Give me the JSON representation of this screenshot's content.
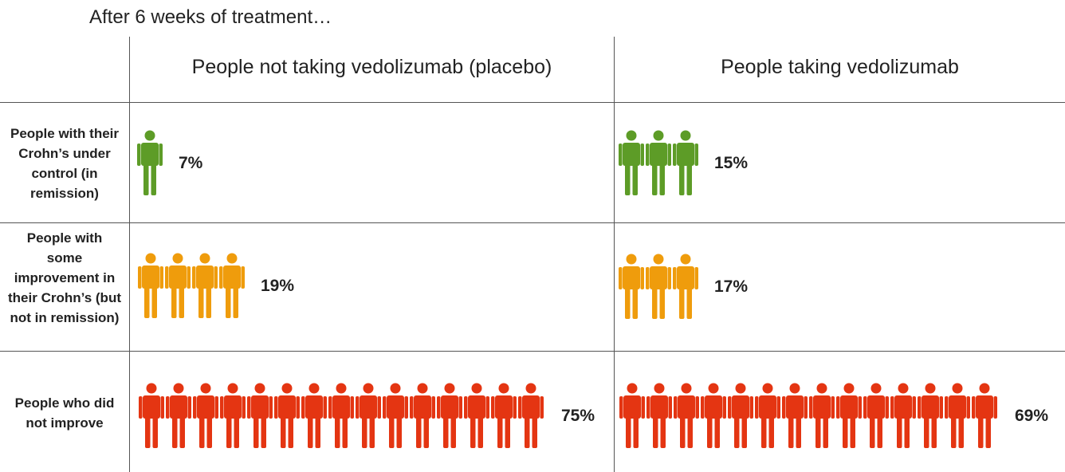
{
  "title": "After 6 weeks of treatment…",
  "colors": {
    "remission": "#5d9c27",
    "improvement": "#ef9c0c",
    "no_improvement": "#e43512",
    "rule": "#555555"
  },
  "icon": "person-icon",
  "chart_data": {
    "type": "table",
    "columns": [
      "People not taking vedolizumab (placebo)",
      "People taking vedolizumab"
    ],
    "rows": [
      {
        "label": "People with their Crohn’s under control (in remission)",
        "color": "#5d9c27",
        "values": [
          7,
          15
        ],
        "value_labels": [
          "7%",
          "15%"
        ],
        "icons": [
          1,
          3
        ]
      },
      {
        "label": "People with some improvement in their Crohn’s (but not in remission)",
        "color": "#ef9c0c",
        "values": [
          19,
          17
        ],
        "value_labels": [
          "19%",
          "17%"
        ],
        "icons": [
          4,
          3
        ]
      },
      {
        "label": "People who did not improve",
        "color": "#e43512",
        "values": [
          75,
          69
        ],
        "value_labels": [
          "75%",
          "69%"
        ],
        "icons": [
          15,
          14
        ]
      }
    ]
  }
}
